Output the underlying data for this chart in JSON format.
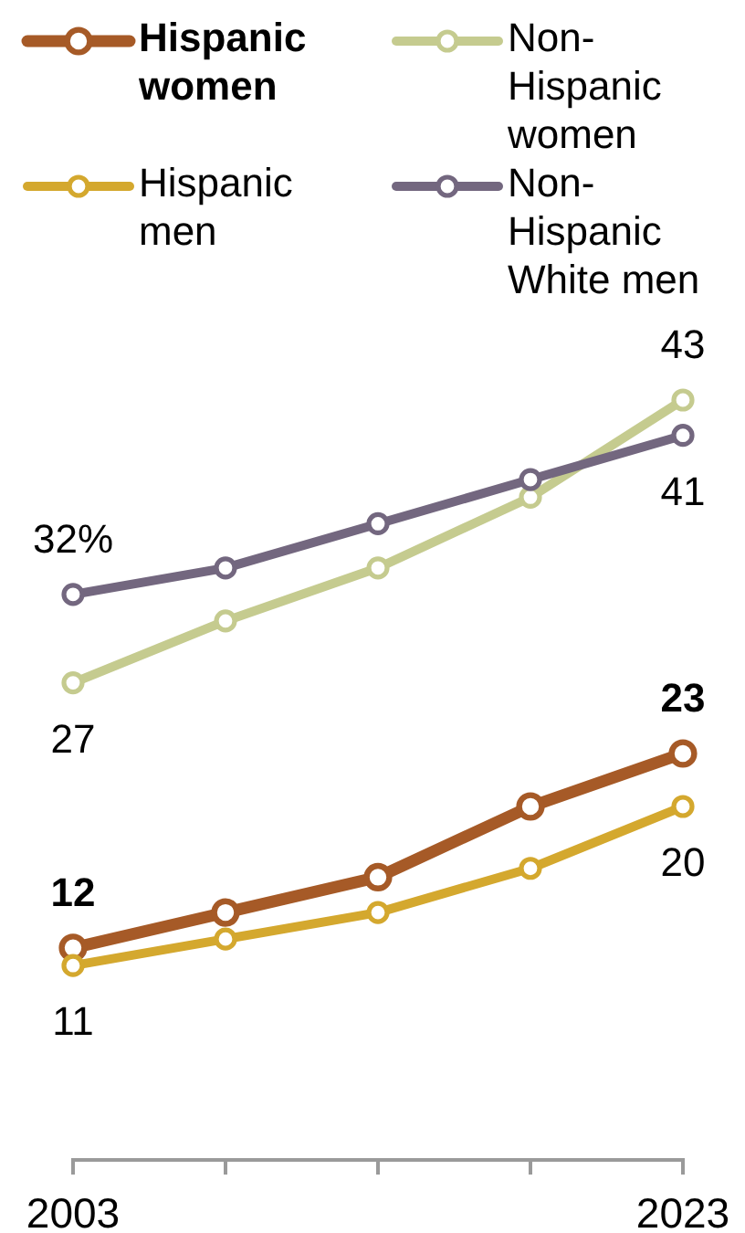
{
  "chart_data": {
    "type": "line",
    "x": [
      2003,
      2008,
      2013,
      2018,
      2023
    ],
    "xlim": [
      2003,
      2023
    ],
    "xticks": [
      2003,
      {
        "value": 2008,
        "label": null
      },
      {
        "value": 2013,
        "label": null
      },
      {
        "value": 2018,
        "label": null
      },
      2023
    ],
    "tick_labels": "x",
    "legend": "top",
    "marker": "circle",
    "series": [
      {
        "name": "Hispanic women",
        "color": "#a65a27",
        "values": [
          12,
          14,
          16,
          20,
          23
        ],
        "value_labels": [
          "12",
          null,
          null,
          null,
          "23"
        ]
      },
      {
        "name": "Non-Hispanic women",
        "color": "#c5cb8f",
        "values": [
          27,
          30.5,
          33.5,
          37.5,
          43
        ],
        "value_labels": [
          "27",
          null,
          null,
          null,
          "43"
        ]
      },
      {
        "name": "Hispanic men",
        "color": "#d4a82e",
        "values": [
          11,
          12.5,
          14,
          16.5,
          20
        ],
        "value_labels": [
          "11",
          null,
          null,
          null,
          "20"
        ]
      },
      {
        "name": "Non-Hispanic White men",
        "color": "#73677f",
        "values": [
          32,
          33.5,
          36,
          38.5,
          41
        ],
        "value_labels": [
          "32%",
          null,
          null,
          null,
          "41"
        ]
      }
    ]
  }
}
